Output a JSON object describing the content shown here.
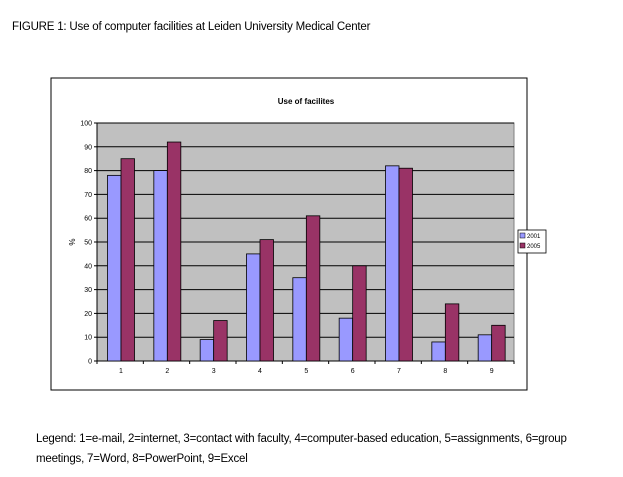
{
  "caption": "FIGURE 1: Use of computer facilities at Leiden University Medical Center",
  "legend_note": "Legend: 1=e-mail, 2=internet, 3=contact with faculty, 4=computer-based education, 5=assignments, 6=group meetings, 7=Word, 8=PowerPoint, 9=Excel",
  "chart_data": {
    "type": "bar",
    "title": "Use of facilites",
    "xlabel": "",
    "ylabel": "%",
    "ylim": [
      0,
      100
    ],
    "yticks": [
      0,
      10,
      20,
      30,
      40,
      50,
      60,
      70,
      80,
      90,
      100
    ],
    "categories": [
      "1",
      "2",
      "3",
      "4",
      "5",
      "6",
      "7",
      "8",
      "9"
    ],
    "series": [
      {
        "name": "2001",
        "color": "#9999ff",
        "values": [
          78,
          80,
          9,
          45,
          35,
          18,
          82,
          8,
          11
        ]
      },
      {
        "name": "2005",
        "color": "#993366",
        "values": [
          85,
          92,
          17,
          51,
          61,
          40,
          81,
          24,
          15
        ]
      }
    ],
    "plot_background": "#c0c0c0",
    "grid": true,
    "legend_position": "right"
  }
}
